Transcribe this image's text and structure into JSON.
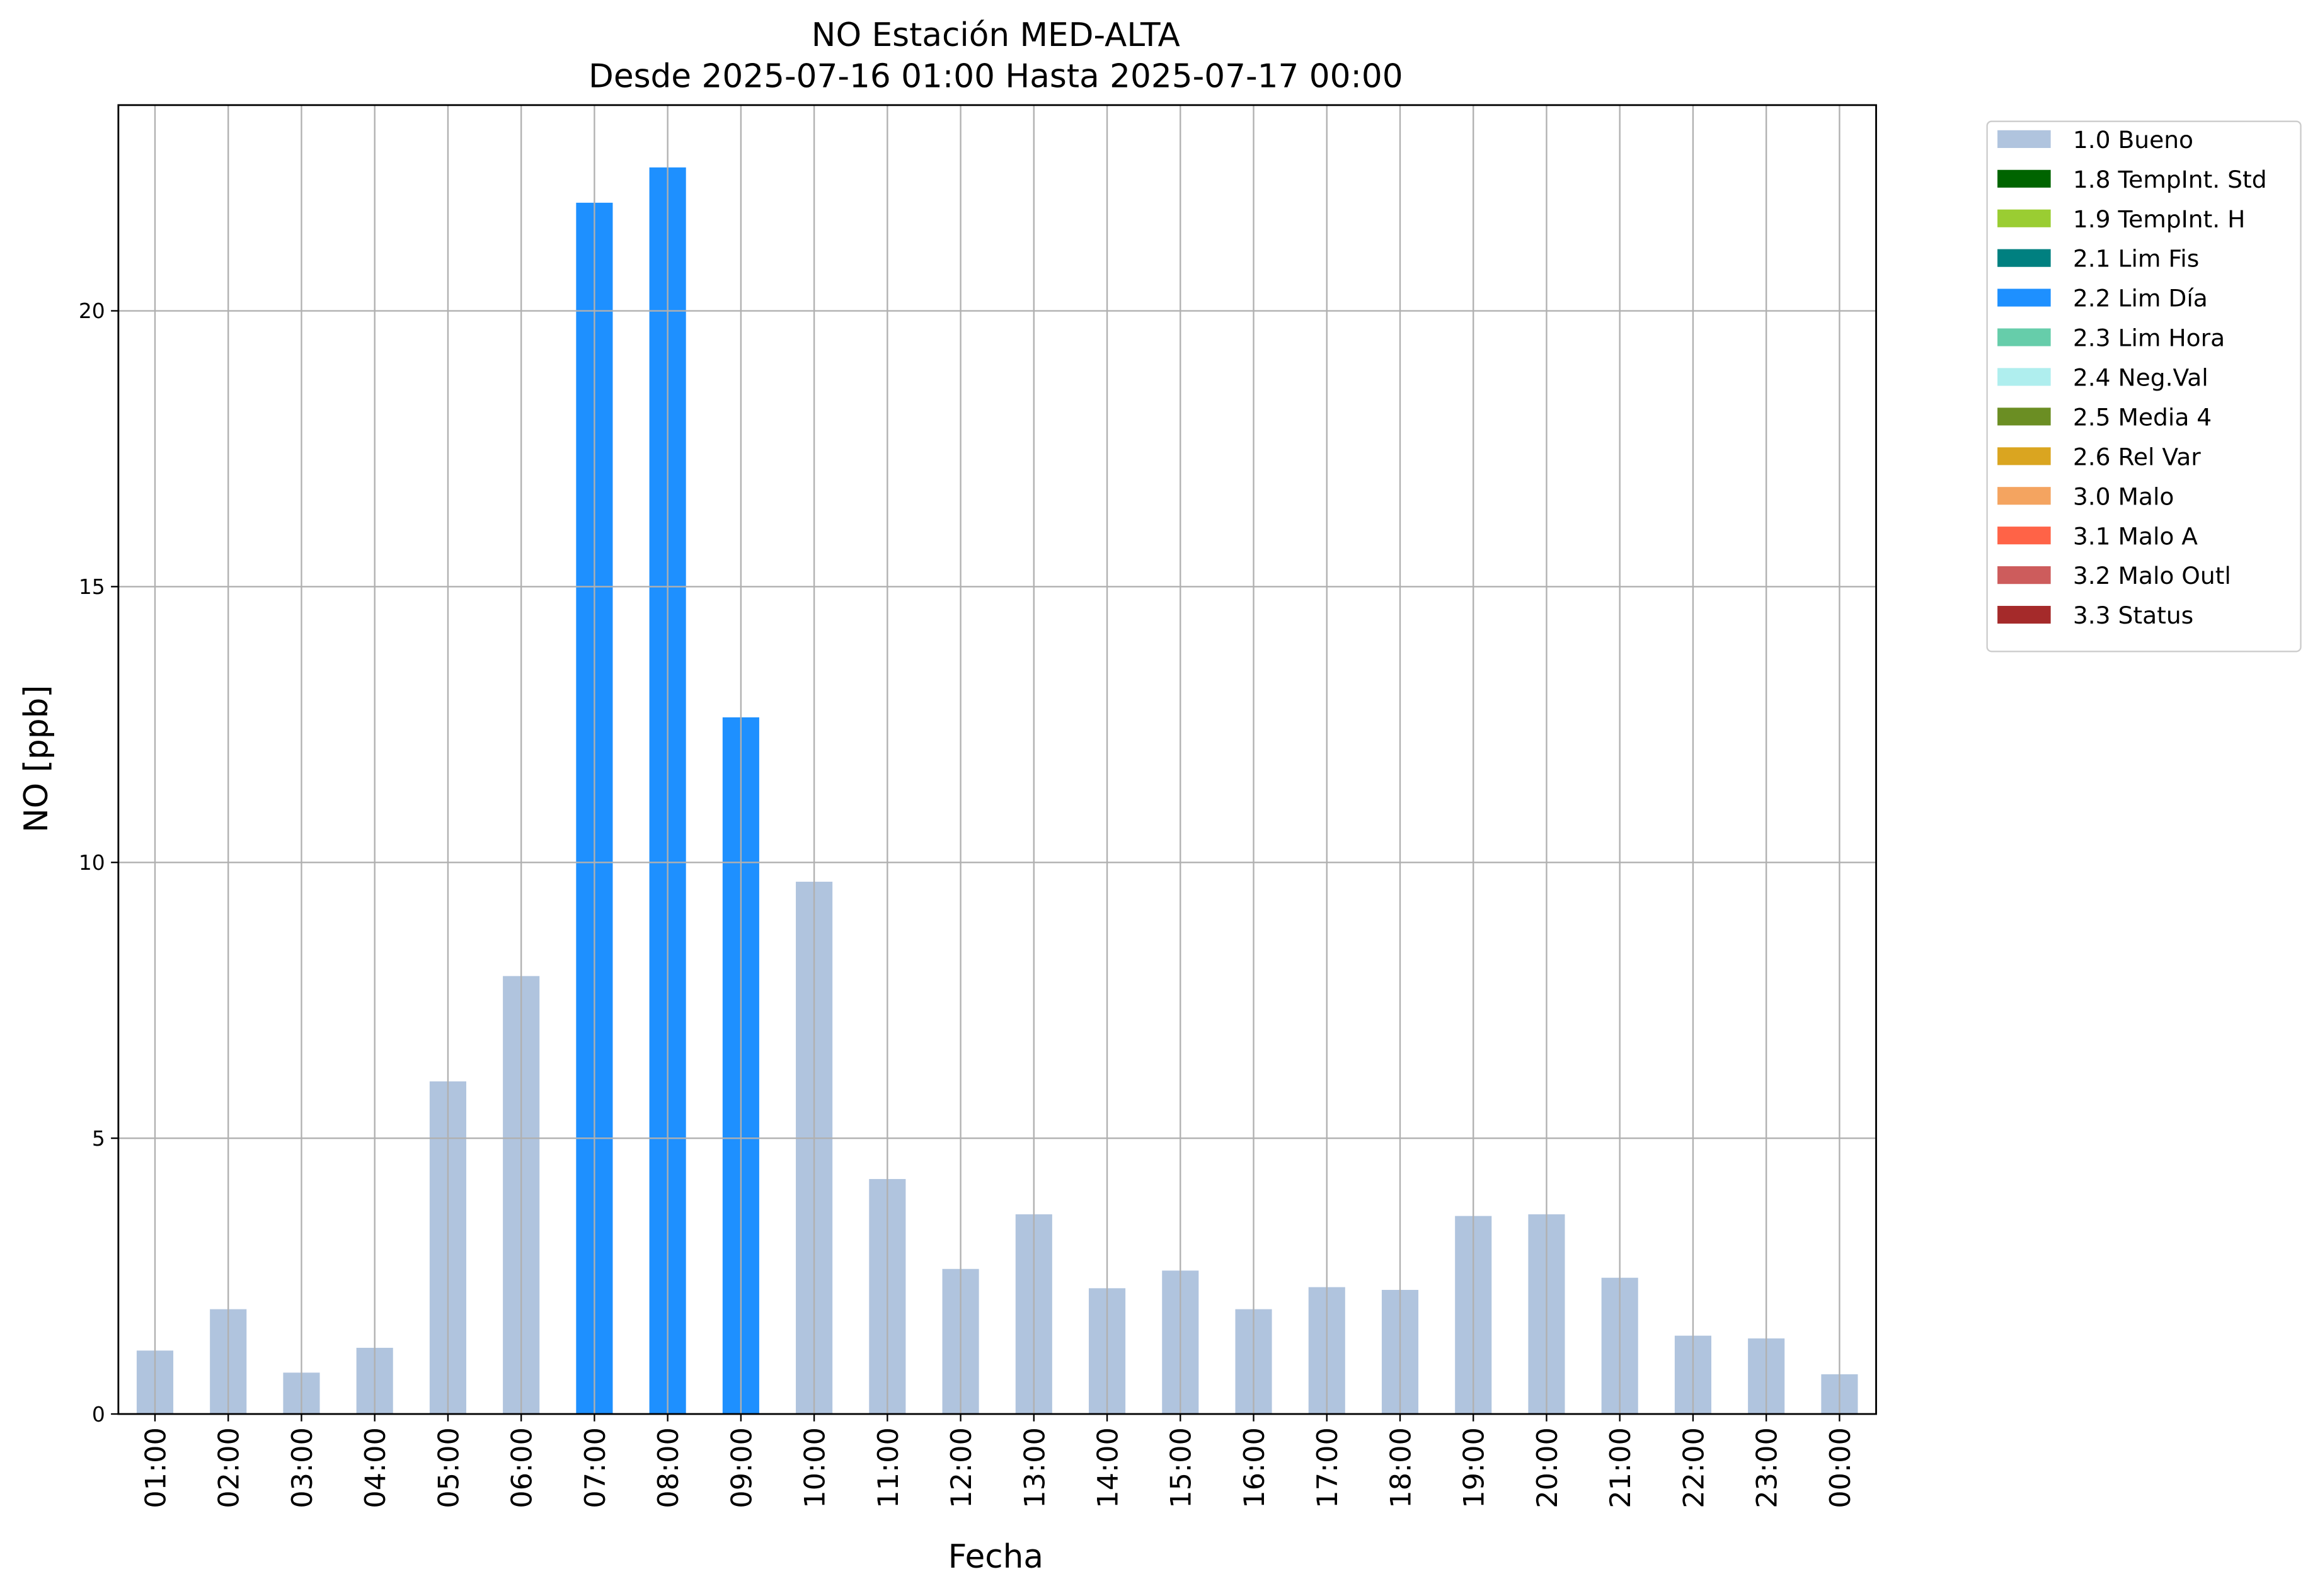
{
  "chart_data": {
    "type": "bar",
    "title": "NO Estación MED-ALTA",
    "subtitle": "Desde 2025-07-16 01:00 Hasta 2025-07-17 00:00",
    "x_label": "Fecha",
    "y_label": "NO [ppb]",
    "categories": [
      "01:00",
      "02:00",
      "03:00",
      "04:00",
      "05:00",
      "06:00",
      "07:00",
      "08:00",
      "09:00",
      "10:00",
      "11:00",
      "12:00",
      "13:00",
      "14:00",
      "15:00",
      "16:00",
      "17:00",
      "18:00",
      "19:00",
      "20:00",
      "21:00",
      "22:00",
      "23:00",
      "00:00"
    ],
    "series": [
      {
        "name": "1.0 Bueno",
        "color": "#b0c4de",
        "values": [
          1.15,
          1.9,
          0.75,
          1.2,
          6.03,
          7.94,
          null,
          null,
          null,
          9.65,
          4.26,
          2.63,
          3.62,
          2.28,
          2.6,
          1.9,
          2.3,
          2.25,
          3.59,
          3.62,
          2.47,
          1.42,
          1.37,
          0.72
        ]
      },
      {
        "name": "1.8 TempInt. Std",
        "color": "#006400",
        "values": [
          null,
          null,
          null,
          null,
          null,
          null,
          null,
          null,
          null,
          null,
          null,
          null,
          null,
          null,
          null,
          null,
          null,
          null,
          null,
          null,
          null,
          null,
          null,
          null
        ]
      },
      {
        "name": "1.9 TempInt. H",
        "color": "#9acd32",
        "values": [
          null,
          null,
          null,
          null,
          null,
          null,
          null,
          null,
          null,
          null,
          null,
          null,
          null,
          null,
          null,
          null,
          null,
          null,
          null,
          null,
          null,
          null,
          null,
          null
        ]
      },
      {
        "name": "2.1 Lim Fis",
        "color": "#008080",
        "values": [
          null,
          null,
          null,
          null,
          null,
          null,
          null,
          null,
          null,
          null,
          null,
          null,
          null,
          null,
          null,
          null,
          null,
          null,
          null,
          null,
          null,
          null,
          null,
          null
        ]
      },
      {
        "name": "2.2 Lim Día",
        "color": "#1e90ff",
        "values": [
          null,
          null,
          null,
          null,
          null,
          null,
          21.96,
          22.6,
          12.63,
          null,
          null,
          null,
          null,
          null,
          null,
          null,
          null,
          null,
          null,
          null,
          null,
          null,
          null,
          null
        ]
      },
      {
        "name": "2.3 Lim Hora",
        "color": "#66cdaa",
        "values": [
          null,
          null,
          null,
          null,
          null,
          null,
          null,
          null,
          null,
          null,
          null,
          null,
          null,
          null,
          null,
          null,
          null,
          null,
          null,
          null,
          null,
          null,
          null,
          null
        ]
      },
      {
        "name": "2.4 Neg.Val",
        "color": "#afeeee",
        "values": [
          null,
          null,
          null,
          null,
          null,
          null,
          null,
          null,
          null,
          null,
          null,
          null,
          null,
          null,
          null,
          null,
          null,
          null,
          null,
          null,
          null,
          null,
          null,
          null
        ]
      },
      {
        "name": "2.5 Media 4",
        "color": "#6b8e23",
        "values": [
          null,
          null,
          null,
          null,
          null,
          null,
          null,
          null,
          null,
          null,
          null,
          null,
          null,
          null,
          null,
          null,
          null,
          null,
          null,
          null,
          null,
          null,
          null,
          null
        ]
      },
      {
        "name": "2.6 Rel Var",
        "color": "#daa520",
        "values": [
          null,
          null,
          null,
          null,
          null,
          null,
          null,
          null,
          null,
          null,
          null,
          null,
          null,
          null,
          null,
          null,
          null,
          null,
          null,
          null,
          null,
          null,
          null,
          null
        ]
      },
      {
        "name": "3.0 Malo",
        "color": "#f4a460",
        "values": [
          null,
          null,
          null,
          null,
          null,
          null,
          null,
          null,
          null,
          null,
          null,
          null,
          null,
          null,
          null,
          null,
          null,
          null,
          null,
          null,
          null,
          null,
          null,
          null
        ]
      },
      {
        "name": "3.1 Malo A",
        "color": "#ff6347",
        "values": [
          null,
          null,
          null,
          null,
          null,
          null,
          null,
          null,
          null,
          null,
          null,
          null,
          null,
          null,
          null,
          null,
          null,
          null,
          null,
          null,
          null,
          null,
          null,
          null
        ]
      },
      {
        "name": "3.2 Malo Outl",
        "color": "#cd5c5c",
        "values": [
          null,
          null,
          null,
          null,
          null,
          null,
          null,
          null,
          null,
          null,
          null,
          null,
          null,
          null,
          null,
          null,
          null,
          null,
          null,
          null,
          null,
          null,
          null,
          null
        ]
      },
      {
        "name": "3.3 Status",
        "color": "#a52a2a",
        "values": [
          null,
          null,
          null,
          null,
          null,
          null,
          null,
          null,
          null,
          null,
          null,
          null,
          null,
          null,
          null,
          null,
          null,
          null,
          null,
          null,
          null,
          null,
          null,
          null
        ]
      }
    ],
    "ylim": [
      0,
      23.73
    ],
    "yticks": [
      0,
      5,
      10,
      15,
      20
    ],
    "grid": true,
    "legend": "outside upper right"
  }
}
